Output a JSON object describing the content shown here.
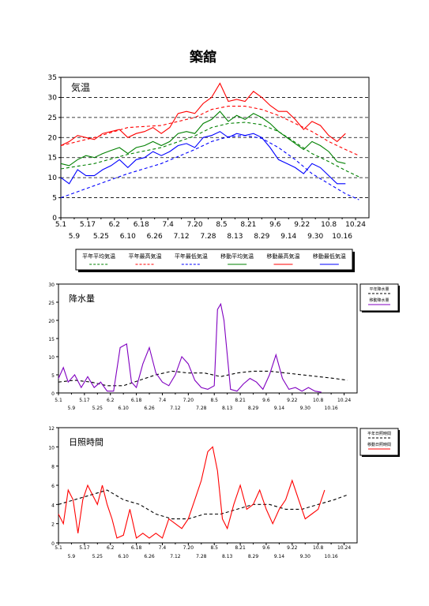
{
  "title": "築舘",
  "x_ticks_row1": [
    "5.1",
    "5.17",
    "6.2",
    "6.18",
    "7.4",
    "7.20",
    "8.5",
    "8.21",
    "9.6",
    "9.22",
    "10.8",
    "10.24"
  ],
  "x_ticks_row2": [
    "5.9",
    "5.25",
    "6.10",
    "6.26",
    "7.12",
    "7.28",
    "8.13",
    "8.29",
    "9.14",
    "9.30",
    "10.16"
  ],
  "chart_data": [
    {
      "type": "line",
      "title": "気温",
      "x_unit": "days from 5.1 (tick every 8 days)",
      "ylim": [
        0,
        35
      ],
      "y_ticks": [
        0,
        5,
        10,
        15,
        20,
        25,
        30,
        35
      ],
      "grid": "horizontal dashed at 5,10,15,20,25,30",
      "legend_position": "below",
      "series": [
        {
          "name": "平年平均気温",
          "color": "#008000",
          "style": "dashed",
          "x": [
            0,
            20,
            40,
            60,
            80,
            90,
            100,
            110,
            120,
            130,
            140,
            150,
            160,
            170,
            178
          ],
          "y": [
            12.2,
            13.5,
            15.8,
            17.5,
            20.4,
            22.5,
            23.5,
            23.8,
            23.2,
            21.5,
            18.8,
            16.0,
            14.0,
            11.8,
            10.2
          ]
        },
        {
          "name": "平年最高気温",
          "color": "#ff0000",
          "style": "dashed",
          "x": [
            0,
            20,
            40,
            60,
            80,
            90,
            100,
            110,
            120,
            130,
            140,
            150,
            160,
            170,
            178
          ],
          "y": [
            18.0,
            20.0,
            22.5,
            23.0,
            25.0,
            27.0,
            27.8,
            27.8,
            27.0,
            25.5,
            23.5,
            21.5,
            19.0,
            17.0,
            15.5
          ]
        },
        {
          "name": "平年最低気温",
          "color": "#0000ff",
          "style": "dashed",
          "x": [
            0,
            20,
            40,
            60,
            80,
            90,
            100,
            110,
            120,
            130,
            140,
            150,
            160,
            170,
            178
          ],
          "y": [
            5.0,
            8.0,
            11.0,
            13.5,
            17.0,
            19.0,
            20.2,
            20.5,
            19.8,
            17.5,
            14.5,
            11.0,
            8.5,
            6.0,
            4.5
          ]
        },
        {
          "name": "移動平均気温",
          "color": "#008000",
          "style": "solid",
          "x": [
            0,
            5,
            10,
            15,
            20,
            25,
            30,
            35,
            40,
            45,
            50,
            55,
            60,
            65,
            70,
            75,
            80,
            85,
            90,
            95,
            100,
            105,
            110,
            115,
            120,
            125,
            130,
            135,
            140,
            145,
            150,
            155,
            160,
            165,
            170
          ],
          "y": [
            13.5,
            13.0,
            14.5,
            15.5,
            15.0,
            16.0,
            16.8,
            17.5,
            16.0,
            17.5,
            18.0,
            19.0,
            18.0,
            19.0,
            21.0,
            21.5,
            21.0,
            23.5,
            24.5,
            26.5,
            24.0,
            25.5,
            24.5,
            26.0,
            25.0,
            23.5,
            21.5,
            20.0,
            18.5,
            17.0,
            19.0,
            18.0,
            16.5,
            14.0,
            13.5
          ]
        },
        {
          "name": "移動最高気温",
          "color": "#ff0000",
          "style": "solid",
          "x": [
            0,
            5,
            10,
            15,
            20,
            25,
            30,
            35,
            40,
            45,
            50,
            55,
            60,
            65,
            70,
            75,
            80,
            85,
            90,
            95,
            100,
            105,
            110,
            115,
            120,
            125,
            130,
            135,
            140,
            145,
            150,
            155,
            160,
            165,
            170
          ],
          "y": [
            18.0,
            19.0,
            20.5,
            20.0,
            19.5,
            21.0,
            21.5,
            22.0,
            20.0,
            21.0,
            21.5,
            22.5,
            21.0,
            22.5,
            26.0,
            26.5,
            26.0,
            28.5,
            30.0,
            33.5,
            29.0,
            29.5,
            29.0,
            31.5,
            30.0,
            28.0,
            26.5,
            26.5,
            24.5,
            22.0,
            24.0,
            23.0,
            20.5,
            19.0,
            21.0
          ]
        },
        {
          "name": "移動最低気温",
          "color": "#0000ff",
          "style": "solid",
          "x": [
            0,
            5,
            10,
            15,
            20,
            25,
            30,
            35,
            40,
            45,
            50,
            55,
            60,
            65,
            70,
            75,
            80,
            85,
            90,
            95,
            100,
            105,
            110,
            115,
            120,
            125,
            130,
            135,
            140,
            145,
            150,
            155,
            160,
            165,
            170
          ],
          "y": [
            10.0,
            8.5,
            12.0,
            10.5,
            10.5,
            12.0,
            13.0,
            14.5,
            12.5,
            14.5,
            15.0,
            16.5,
            15.5,
            16.5,
            18.0,
            18.5,
            17.5,
            20.0,
            20.5,
            21.5,
            20.0,
            21.0,
            20.5,
            21.0,
            20.0,
            17.5,
            14.5,
            13.5,
            12.5,
            11.0,
            13.5,
            12.5,
            10.5,
            8.5,
            8.5
          ]
        }
      ]
    },
    {
      "type": "line",
      "title": "降水量",
      "ylim": [
        0,
        30
      ],
      "y_ticks": [
        0,
        5,
        10,
        15,
        20,
        25,
        30
      ],
      "legend_position": "right",
      "series": [
        {
          "name": "平年降水量",
          "color": "#000000",
          "style": "dashed",
          "x": [
            0,
            10,
            20,
            30,
            40,
            50,
            60,
            70,
            80,
            90,
            100,
            110,
            120,
            130,
            140,
            150,
            160,
            170,
            178
          ],
          "y": [
            3.0,
            3.5,
            3.0,
            2.0,
            2.0,
            3.5,
            5.0,
            6.0,
            5.5,
            5.5,
            4.5,
            5.5,
            6.0,
            6.0,
            5.5,
            5.0,
            4.5,
            4.0,
            3.5
          ]
        },
        {
          "name": "移動降水量",
          "color": "#8000c0",
          "style": "solid",
          "x": [
            0,
            3,
            6,
            10,
            14,
            18,
            22,
            26,
            30,
            34,
            38,
            42,
            45,
            48,
            52,
            56,
            60,
            64,
            68,
            72,
            76,
            80,
            84,
            88,
            92,
            96,
            98,
            100,
            102,
            106,
            110,
            114,
            118,
            122,
            126,
            130,
            134,
            138,
            142,
            146,
            150,
            154,
            158,
            162
          ],
          "y": [
            4.0,
            7.0,
            3.0,
            5.0,
            1.5,
            4.5,
            1.5,
            3.0,
            0.5,
            0.5,
            12.5,
            13.5,
            3.0,
            1.5,
            8.0,
            12.5,
            5.5,
            3.0,
            2.0,
            5.0,
            10.0,
            8.0,
            3.5,
            1.5,
            1.0,
            2.0,
            23.0,
            24.5,
            20.0,
            1.0,
            0.5,
            2.5,
            4.0,
            3.0,
            1.0,
            5.0,
            10.5,
            4.0,
            1.0,
            1.5,
            0.5,
            1.5,
            0.5,
            0.2
          ]
        }
      ]
    },
    {
      "type": "line",
      "title": "日照時間",
      "ylim": [
        0,
        12
      ],
      "y_ticks": [
        0,
        2,
        4,
        6,
        8,
        10,
        12
      ],
      "legend_position": "right",
      "series": [
        {
          "name": "平年日照時間",
          "color": "#000000",
          "style": "dashed",
          "x": [
            0,
            10,
            20,
            30,
            40,
            50,
            60,
            70,
            80,
            90,
            100,
            110,
            120,
            130,
            140,
            150,
            160,
            170,
            178
          ],
          "y": [
            4.0,
            4.5,
            5.0,
            5.5,
            4.5,
            4.0,
            3.0,
            2.5,
            2.5,
            3.0,
            3.0,
            3.5,
            4.0,
            4.0,
            3.5,
            3.5,
            4.0,
            4.5,
            5.0
          ]
        },
        {
          "name": "移動日照時間",
          "color": "#ff0000",
          "style": "solid",
          "x": [
            0,
            3,
            6,
            9,
            12,
            15,
            18,
            21,
            24,
            27,
            30,
            33,
            36,
            40,
            44,
            48,
            52,
            56,
            60,
            64,
            68,
            72,
            76,
            80,
            84,
            88,
            92,
            95,
            98,
            101,
            104,
            108,
            112,
            116,
            120,
            124,
            128,
            132,
            136,
            140,
            144,
            148,
            152,
            156,
            160,
            164
          ],
          "y": [
            3.0,
            2.0,
            5.5,
            4.5,
            1.0,
            4.5,
            6.0,
            5.0,
            4.0,
            6.0,
            4.0,
            2.5,
            0.5,
            0.8,
            3.5,
            0.5,
            1.0,
            0.5,
            1.0,
            0.5,
            2.5,
            2.0,
            1.5,
            2.5,
            4.5,
            6.5,
            9.5,
            10.0,
            7.5,
            2.5,
            1.5,
            4.0,
            6.0,
            3.5,
            4.0,
            5.5,
            3.5,
            2.0,
            3.5,
            4.5,
            6.5,
            4.5,
            2.5,
            3.0,
            3.5,
            5.5
          ]
        }
      ]
    }
  ]
}
